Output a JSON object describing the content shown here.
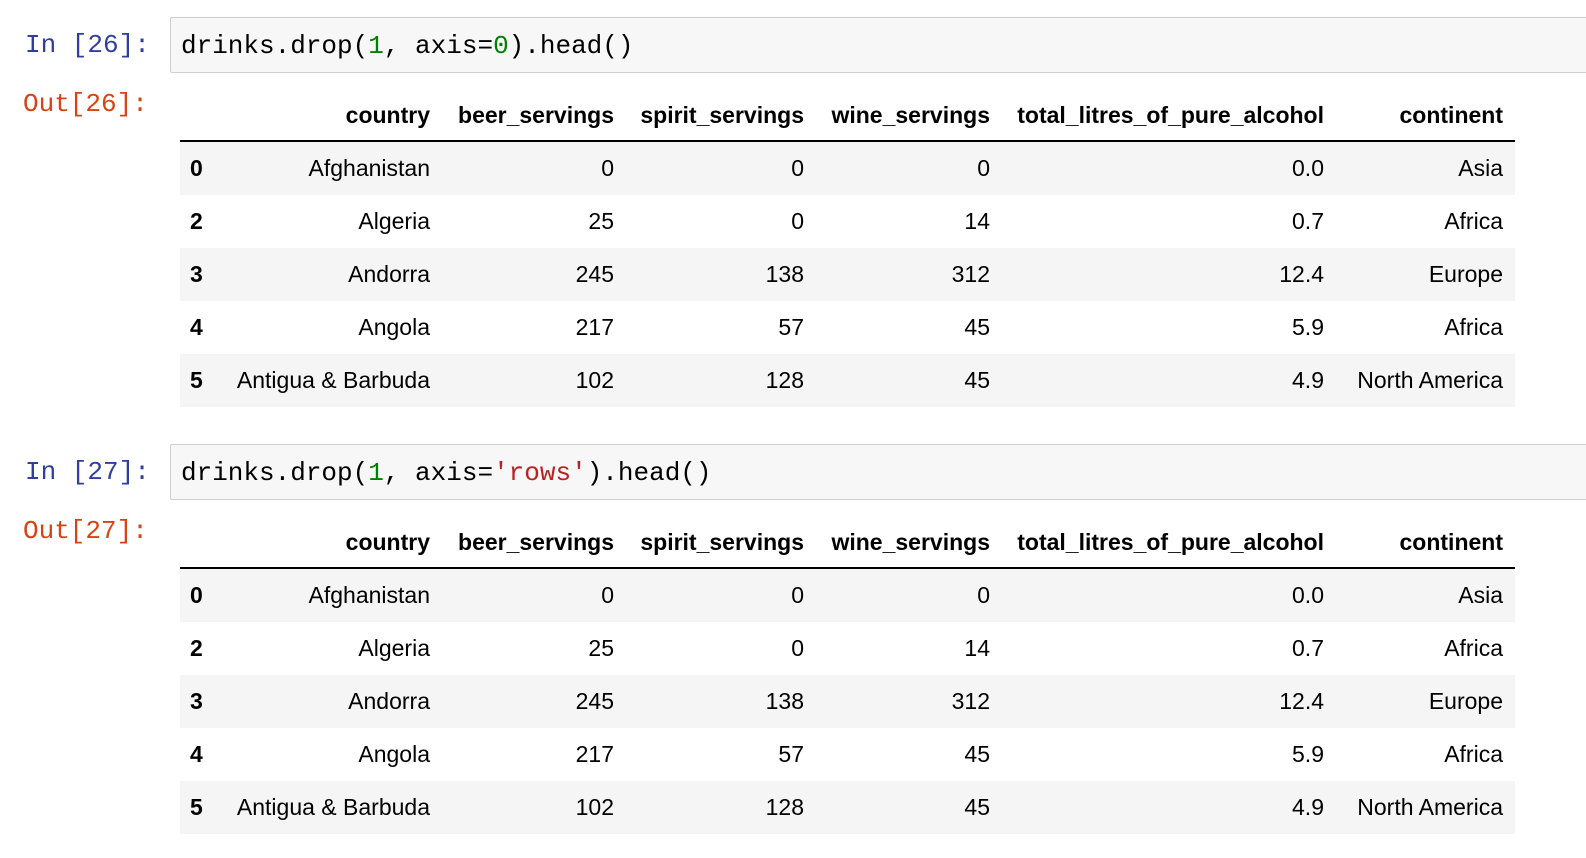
{
  "cells": [
    {
      "input_prompt": "In [26]:",
      "code": [
        {
          "text": "drinks.drop(",
          "color": "#000000"
        },
        {
          "text": "1",
          "color": "#008000"
        },
        {
          "text": ", axis=",
          "color": "#000000"
        },
        {
          "text": "0",
          "color": "#008000"
        },
        {
          "text": ").head()",
          "color": "#000000"
        }
      ],
      "output_prompt": "Out[26]:",
      "table": {
        "columns": [
          "country",
          "beer_servings",
          "spirit_servings",
          "wine_servings",
          "total_litres_of_pure_alcohol",
          "continent"
        ],
        "rows": [
          {
            "index": "0",
            "values": [
              "Afghanistan",
              "0",
              "0",
              "0",
              "0.0",
              "Asia"
            ]
          },
          {
            "index": "2",
            "values": [
              "Algeria",
              "25",
              "0",
              "14",
              "0.7",
              "Africa"
            ]
          },
          {
            "index": "3",
            "values": [
              "Andorra",
              "245",
              "138",
              "312",
              "12.4",
              "Europe"
            ]
          },
          {
            "index": "4",
            "values": [
              "Angola",
              "217",
              "57",
              "45",
              "5.9",
              "Africa"
            ]
          },
          {
            "index": "5",
            "values": [
              "Antigua & Barbuda",
              "102",
              "128",
              "45",
              "4.9",
              "North America"
            ]
          }
        ]
      }
    },
    {
      "input_prompt": "In [27]:",
      "code": [
        {
          "text": "drinks.drop(",
          "color": "#000000"
        },
        {
          "text": "1",
          "color": "#008000"
        },
        {
          "text": ", axis=",
          "color": "#000000"
        },
        {
          "text": "'rows'",
          "color": "#ba2121"
        },
        {
          "text": ").head()",
          "color": "#000000"
        }
      ],
      "output_prompt": "Out[27]:",
      "table": {
        "columns": [
          "country",
          "beer_servings",
          "spirit_servings",
          "wine_servings",
          "total_litres_of_pure_alcohol",
          "continent"
        ],
        "rows": [
          {
            "index": "0",
            "values": [
              "Afghanistan",
              "0",
              "0",
              "0",
              "0.0",
              "Asia"
            ]
          },
          {
            "index": "2",
            "values": [
              "Algeria",
              "25",
              "0",
              "14",
              "0.7",
              "Africa"
            ]
          },
          {
            "index": "3",
            "values": [
              "Andorra",
              "245",
              "138",
              "312",
              "12.4",
              "Europe"
            ]
          },
          {
            "index": "4",
            "values": [
              "Angola",
              "217",
              "57",
              "45",
              "5.9",
              "Africa"
            ]
          },
          {
            "index": "5",
            "values": [
              "Antigua & Barbuda",
              "102",
              "128",
              "45",
              "4.9",
              "North America"
            ]
          }
        ]
      }
    }
  ]
}
